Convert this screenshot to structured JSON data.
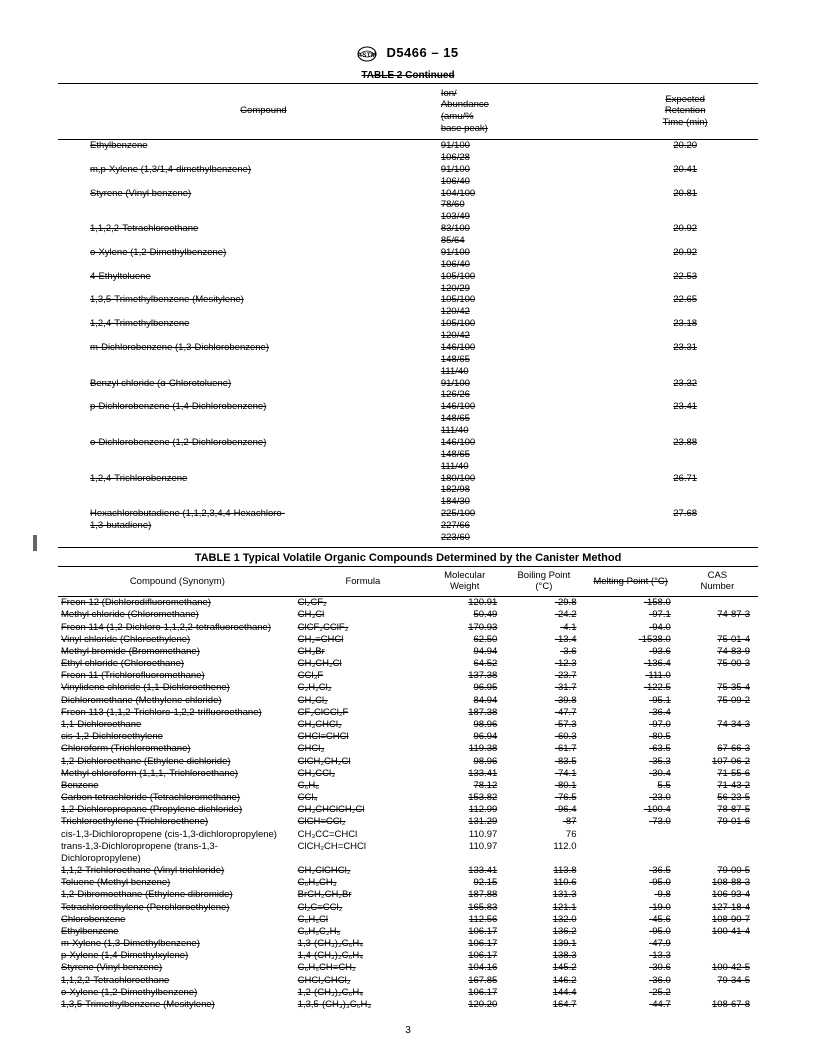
{
  "header": {
    "designation": "D5466 – 15"
  },
  "table2": {
    "caption": "TABLE 2   Continued",
    "columns": {
      "compound": "Compound",
      "ion": "Ion/\nAbundance\n(amu/%\nbase peak)",
      "ret": "Expected\nRetention\nTime (min)"
    },
    "rows": [
      {
        "c": "Ethylbenzene",
        "ions": [
          "91/100",
          "106/28"
        ],
        "r": "20.20"
      },
      {
        "c": "m,p-Xylene (1,3/1,4-dimethylbenzene)",
        "ions": [
          "91/100",
          "106/40"
        ],
        "r": "20.41"
      },
      {
        "c": "Styrene (Vinyl benzene)",
        "ions": [
          "104/100",
          "78/60",
          "103/49"
        ],
        "r": "20.81"
      },
      {
        "c": "1,1,2,2-Tetrachloroethane",
        "ions": [
          "83/100",
          "85/64"
        ],
        "r": "20.92"
      },
      {
        "c": "o-Xylene (1,2-Dimethylbenzene)",
        "ions": [
          "91/100",
          "106/40"
        ],
        "r": "20.92"
      },
      {
        "c": "4-Ethyltoluene",
        "ions": [
          "105/100",
          "120/29"
        ],
        "r": "22.53"
      },
      {
        "c": "1,3,5-Trimethylbenzene (Mesitylene)",
        "ions": [
          "105/100",
          "120/42"
        ],
        "r": "22.65"
      },
      {
        "c": "1,2,4-Trimethylbenzene",
        "ions": [
          "105/100",
          "120/42"
        ],
        "r": "23.18"
      },
      {
        "c": "m-Dichlorobenzene (1,3-Dichlorobenzene)",
        "ions": [
          "146/100",
          "148/65",
          "111/40"
        ],
        "r": "23.31"
      },
      {
        "c": "Benzyl chloride (α-Chlorotoluene)",
        "ions": [
          "91/100",
          "126/26"
        ],
        "r": "23.32"
      },
      {
        "c": "p-Dichlorobenzene (1,4-Dichlorobenzene)",
        "ions": [
          "146/100",
          "148/65",
          "111/40"
        ],
        "r": "23.41"
      },
      {
        "c": "o-Dichlorobenzene (1,2-Dichlorobenzene)",
        "ions": [
          "146/100",
          "148/65",
          "111/40"
        ],
        "r": "23.88"
      },
      {
        "c": "1,2,4-Trichlorobenzene",
        "ions": [
          "180/100",
          "182/98",
          "184/30"
        ],
        "r": "26.71"
      },
      {
        "c": "Hexachlorobutadiene (1,1,2,3,4,4-Hexachloro-",
        "c2": "  1,3-butadiene)",
        "ions": [
          "225/100",
          "227/66",
          "223/60"
        ],
        "r": "27.68"
      }
    ]
  },
  "table1": {
    "caption": "TABLE 1 Typical Volatile Organic Compounds Determined by the Canister Method",
    "columns": {
      "syn": "Compound (Synonym)",
      "form": "Formula",
      "mw": "Molecular\nWeight",
      "bp": "Boiling Point\n(°C)",
      "mp": "Melting Point (°C)",
      "cas": "CAS\nNumber"
    },
    "rows": [
      {
        "s": 1,
        "syn": "Freon 12 (Dichlorodifluoromethane)",
        "form": "Cl₂CF₂",
        "mw": "120.91",
        "bp": "-29.8",
        "mp": "-158.0",
        "cas": ""
      },
      {
        "s": 1,
        "syn": "Methyl chloride (Chloromethane)",
        "form": "CH₃Cl",
        "mw": "50.49",
        "bp": "-24.2",
        "mp": "-97.1",
        "cas": "74-87-3"
      },
      {
        "s": 1,
        "syn": "Freon 114 (1,2-Dichloro-1,1,2,2-tetrafluoroethane)",
        "form": "ClCF₂CClF₂",
        "mw": "170.93",
        "bp": "-4.1",
        "mp": "-94.0",
        "cas": ""
      },
      {
        "s": 1,
        "syn": "Vinyl chloride (Chloroethylene)",
        "form": "CH₂=CHCl",
        "mw": "62.50",
        "bp": "-13.4",
        "mp": "-1538.0",
        "cas": "75-01-4"
      },
      {
        "s": 1,
        "syn": "Methyl bromide (Bromomethane)",
        "form": "CH₃Br",
        "mw": "94.94",
        "bp": "-3.6",
        "mp": "-93.6",
        "cas": "74-83-9"
      },
      {
        "s": 1,
        "syn": "Ethyl chloride (Chloroethane)",
        "form": "CH₃CH₂Cl",
        "mw": "64.52",
        "bp": "-12.3",
        "mp": "-136.4",
        "cas": "75-00-3"
      },
      {
        "s": 1,
        "syn": "Freon 11 (Trichlorofluoromethane)",
        "form": "CCl₃F",
        "mw": "137.38",
        "bp": "-23.7",
        "mp": "-111.0",
        "cas": ""
      },
      {
        "s": 1,
        "syn": "Vinylidene chloride (1,1-Dichloroethene)",
        "form": "C₂H₂Cl₂",
        "mw": "96.95",
        "bp": "-31.7",
        "mp": "-122.5",
        "cas": "75-35-4"
      },
      {
        "s": 1,
        "syn": "Dichloromethane (Methylene chloride)",
        "form": "CH₂Cl₂",
        "mw": "84.94",
        "bp": "-39.8",
        "mp": "-95.1",
        "cas": "75-09-2"
      },
      {
        "s": 1,
        "syn": "Freon 113 (1,1,2-Trichloro-1,2,2-trifluoroethane)",
        "form": "CF₂ClCCl₂F",
        "mw": "187.38",
        "bp": "-47.7",
        "mp": "-36.4",
        "cas": ""
      },
      {
        "s": 1,
        "syn": "1,1-Dichloroethane",
        "form": "CH₃CHCl₂",
        "mw": "98.96",
        "bp": "-57.3",
        "mp": "-97.0",
        "cas": "74-34-3"
      },
      {
        "s": 1,
        "syn": "cis-1,2-Dichloroethylene",
        "form": "CHCl=CHCl",
        "mw": "96.94",
        "bp": "-60.3",
        "mp": "-80.5",
        "cas": ""
      },
      {
        "s": 1,
        "syn": "Chloroform (Trichloromethane)",
        "form": "CHCl₃",
        "mw": "119.38",
        "bp": "-61.7",
        "mp": "-63.5",
        "cas": "67-66-3"
      },
      {
        "s": 1,
        "syn": "1,2-Dichloroethane (Ethylene dichloride)",
        "form": "ClCH₂CH₂Cl",
        "mw": "98.96",
        "bp": "-83.5",
        "mp": "-35.3",
        "cas": "107-06-2"
      },
      {
        "s": 1,
        "syn": "Methyl chloroform (1,1,1,-Trichloroethane)",
        "form": "CH₃CCl₃",
        "mw": "133.41",
        "bp": "-74.1",
        "mp": "-30.4",
        "cas": "71-55-6"
      },
      {
        "s": 1,
        "syn": "Benzene",
        "form": "C₆H₆",
        "mw": "78.12",
        "bp": "-80.1",
        "mp": "5.5",
        "cas": "71-43-2"
      },
      {
        "s": 1,
        "syn": "Carbon tetrachloride (Tetrachloromethane)",
        "form": "CCl₄",
        "mw": "153.82",
        "bp": "-76.5",
        "mp": "-23.0",
        "cas": "56-23-5"
      },
      {
        "s": 1,
        "syn": "1,2-Dichloropropane (Propylene dichloride)",
        "form": "CH₃CHClCH₂Cl",
        "mw": "112.99",
        "bp": "-96.4",
        "mp": "-100.4",
        "cas": "78-87-5"
      },
      {
        "s": 1,
        "syn": "Trichloroethylene (Trichloroethene)",
        "form": "ClCH=CCl₂",
        "mw": "131.29",
        "bp": "-87",
        "mp": "-73.0",
        "cas": "79-01-6"
      },
      {
        "s": 0,
        "syn": "cis-1,3-Dichloropropene (cis-1,3-dichloropropylene)",
        "form": "CH₃CC=CHCl",
        "mw": "110.97",
        "bp": "76",
        "mp": "",
        "cas": ""
      },
      {
        "s": 0,
        "syn": "trans-1,3-Dichloropropene (trans-1,3-",
        "syn2": "Dichloropropylene)",
        "form": "ClCH₂CH=CHCl",
        "mw": "110.97",
        "bp": "112.0",
        "mp": "",
        "cas": ""
      },
      {
        "s": 1,
        "syn": "1,1,2-Trichloroethane (Vinyl trichloride)",
        "form": "CH₂ClCHCl₂",
        "mw": "133.41",
        "bp": "113.8",
        "mp": "-36.5",
        "cas": "79-00-5"
      },
      {
        "s": 1,
        "syn": "Toluene (Methyl benzene)",
        "form": "C₆H₅CH₃",
        "mw": "92.15",
        "bp": "110.6",
        "mp": "-95.0",
        "cas": "108-88-3"
      },
      {
        "s": 1,
        "syn": "1,2-Dibromoethane (Ethylene dibromide)",
        "form": "BrCH₂CH₂Br",
        "mw": "187.88",
        "bp": "131.3",
        "mp": "-9.8",
        "cas": "106-93-4"
      },
      {
        "s": 1,
        "syn": "Tetrachloroethylene (Perchloroethylene)",
        "form": "Cl₂C=CCl₂",
        "mw": "165.83",
        "bp": "121.1",
        "mp": "-19.0",
        "cas": "127-18-4"
      },
      {
        "s": 1,
        "syn": "Chlorobenzene",
        "form": "C₆H₅Cl",
        "mw": "112.56",
        "bp": "132.0",
        "mp": "-45.6",
        "cas": "108-90-7"
      },
      {
        "s": 1,
        "syn": "Ethylbenzene",
        "form": "C₆H₅C₂H₅",
        "mw": "106.17",
        "bp": "136.2",
        "mp": "-95.0",
        "cas": "100-41-4"
      },
      {
        "s": 1,
        "syn": "m-Xylene (1,3-Dimethylbenzene)",
        "form": "1,3-(CH₃)₂C₆H₄",
        "mw": "106.17",
        "bp": "139.1",
        "mp": "-47.9",
        "cas": ""
      },
      {
        "s": 1,
        "syn": "p-Xylene (1,4-Dimethylxylene)",
        "form": "1,4-(CH₃)₂C₆H₄",
        "mw": "106.17",
        "bp": "138.3",
        "mp": "-13.3",
        "cas": ""
      },
      {
        "s": 1,
        "syn": "Styrene (Vinyl benzene)",
        "form": "C₆H₅CH=CH₂",
        "mw": "104.16",
        "bp": "145.2",
        "mp": "-30.6",
        "cas": "100-42-5"
      },
      {
        "s": 1,
        "syn": "1,1,2,2-Tetrachloroethane",
        "form": "CHCl₂CHCl₂",
        "mw": "167.85",
        "bp": "146.2",
        "mp": "-36.0",
        "cas": "79-34-5"
      },
      {
        "s": 1,
        "syn": "o-Xylene (1,2-Dimethylbenzene)",
        "form": "1,2-(CH₃)₂C₆H₄",
        "mw": "106.17",
        "bp": "144.4",
        "mp": "-25.2",
        "cas": ""
      },
      {
        "s": 1,
        "syn": "1,3,5-Trimethylbenzene (Mesitylene)",
        "form": "1,3,5-(CH₃)₃C₆H₃",
        "mw": "120.20",
        "bp": "164.7",
        "mp": "-44.7",
        "cas": "108-67-8"
      }
    ]
  },
  "page": "3"
}
